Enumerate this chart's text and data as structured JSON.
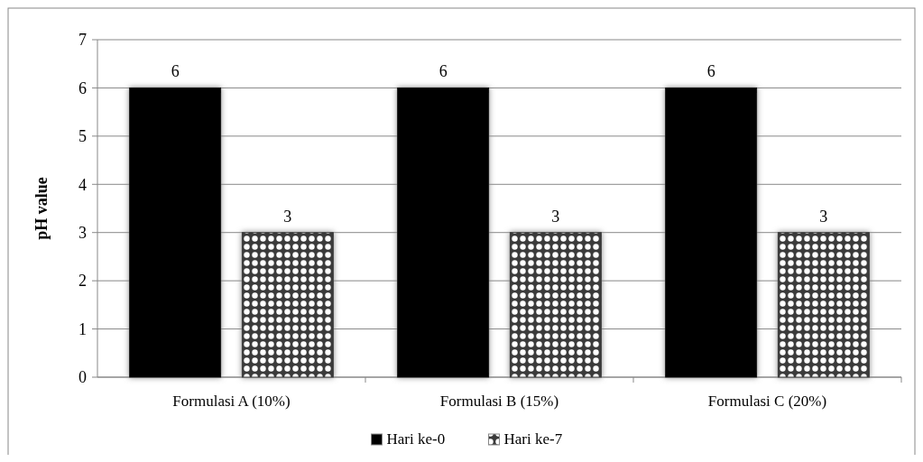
{
  "chart_data": {
    "type": "bar",
    "ylabel": "pH value",
    "categories": [
      "Formulasi A (10%)",
      "Formulasi B (15%)",
      "Formulasi C (20%)"
    ],
    "series": [
      {
        "name": "Hari ke-0",
        "color": "#000000",
        "values": [
          6,
          6,
          6
        ]
      },
      {
        "name": "Hari ke-7",
        "color": "#3a3a3a",
        "values": [
          3,
          3,
          3
        ]
      }
    ],
    "ylim": [
      0,
      7
    ],
    "yticks": [
      0,
      1,
      2,
      3,
      4,
      5,
      6,
      7
    ],
    "grid": "y",
    "legend": "bottom",
    "data_labels": true
  }
}
